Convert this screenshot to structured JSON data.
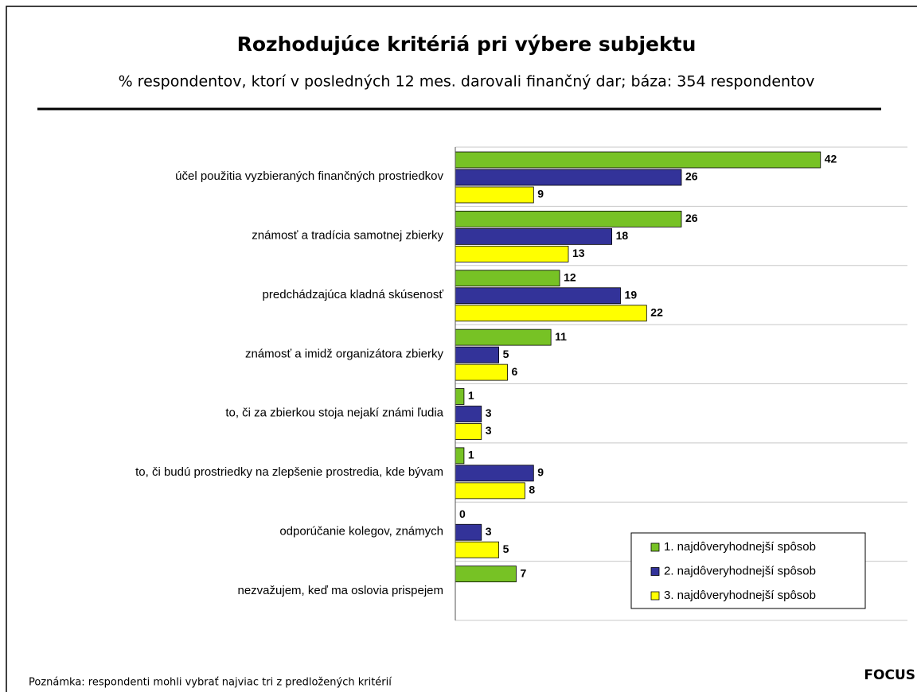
{
  "chart_data": {
    "type": "hbar",
    "title": "Rozhodujúce kritériá pri výbere subjektu",
    "subtitle": "% respondentov, ktorí v posledných 12 mes. darovali finančný dar; báza: 354 respondentov",
    "categories": [
      "účel použitia vyzbieraných finančných prostriedkov",
      "známosť a tradícia samotnej zbierky",
      "predchádzajúca kladná skúsenosť",
      "známosť a imidž organizátora zbierky",
      "to, či za zbierkou stoja nejakí známi ľudia",
      "to, či budú prostriedky na zlepšenie prostredia, kde bývam",
      "odporúčanie kolegov, známych",
      "nezvažujem, keď ma oslovia prispejem"
    ],
    "series": [
      {
        "name": "1. najdôveryhodnejší spôsob",
        "color": "#77c225",
        "values": [
          42,
          26,
          12,
          11,
          1,
          1,
          0,
          7
        ]
      },
      {
        "name": "2. najdôveryhodnejší spôsob",
        "color": "#333399",
        "values": [
          26,
          18,
          19,
          5,
          3,
          9,
          3,
          null
        ]
      },
      {
        "name": "3. najdôveryhodnejší spôsob",
        "color": "#ffff00",
        "values": [
          9,
          13,
          22,
          6,
          3,
          8,
          5,
          null
        ]
      }
    ],
    "xlim": [
      0,
      52
    ],
    "legend": "lower right",
    "note": "Poznámka: respondenti mohli vybrať najviac tri z predložených kritérií",
    "brand": "FOCUS"
  }
}
